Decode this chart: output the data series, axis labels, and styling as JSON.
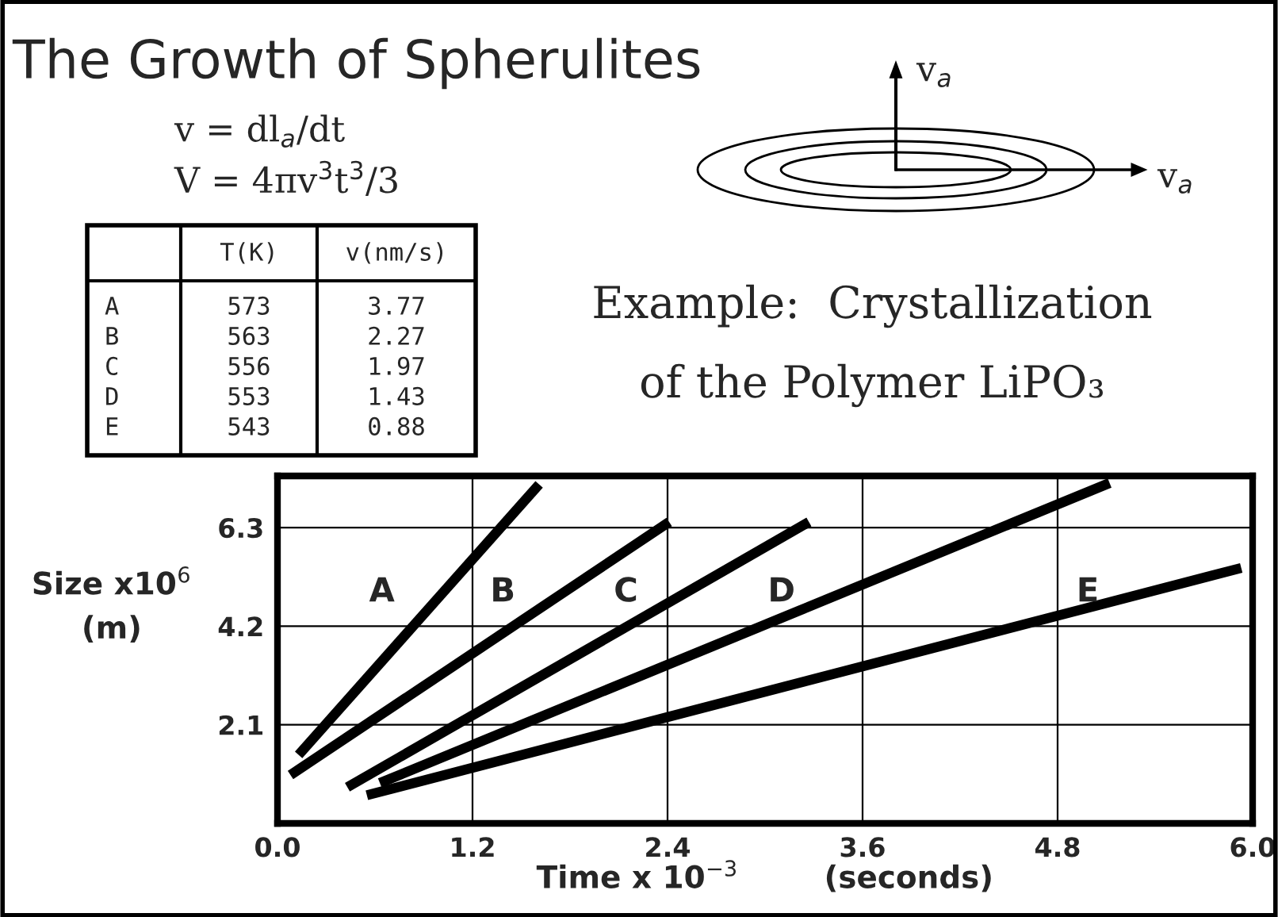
{
  "chart_data": {
    "type": "line",
    "title": "The Growth of Spherulites",
    "xlabel": "Time x 10$^{−3}$        (seconds)",
    "ylabel": "Size x10$^{6}$\n(m)",
    "series": [
      {
        "name": "A",
        "color": "#000000",
        "x": [
          0.13,
          1.61
        ],
        "values": [
          1.46,
          7.22
        ]
      },
      {
        "name": "B",
        "color": "#000000",
        "x": [
          0.08,
          2.41
        ],
        "values": [
          1.03,
          6.42
        ]
      },
      {
        "name": "C",
        "color": "#000000",
        "x": [
          0.43,
          3.27
        ],
        "values": [
          0.77,
          6.42
        ]
      },
      {
        "name": "D",
        "color": "#000000",
        "x": [
          0.63,
          5.12
        ],
        "values": [
          0.86,
          7.25
        ]
      },
      {
        "name": "E",
        "color": "#000000",
        "x": [
          0.55,
          5.93
        ],
        "values": [
          0.6,
          5.44
        ]
      }
    ],
    "xlim": [
      0,
      6
    ],
    "ylim": [
      0,
      7.4
    ],
    "xticks": [
      {
        "value": 0,
        "label": "0.0"
      },
      1.2,
      2.4,
      3.6,
      4.8,
      {
        "value": 6,
        "label": "6.0"
      }
    ],
    "yticks": [
      2.1,
      4.2,
      6.3
    ],
    "grid": true,
    "marker": "none",
    "line_style": "solid",
    "annotations": [
      "v = dl$_{a}$/dt",
      "V = 4πv$^{3}$t$^{3}$/3",
      "T(K)",
      "v(nm/s)",
      "A",
      "573",
      "3.77",
      "B",
      "563",
      "2.27",
      "C",
      "556",
      "1.97",
      "D",
      "553",
      "1.43",
      "E",
      "543",
      "0.88",
      "Example:  Crystallization",
      "of the Polymer LiPO₃",
      "v$_{a}$",
      "v$_{a}$"
    ]
  }
}
